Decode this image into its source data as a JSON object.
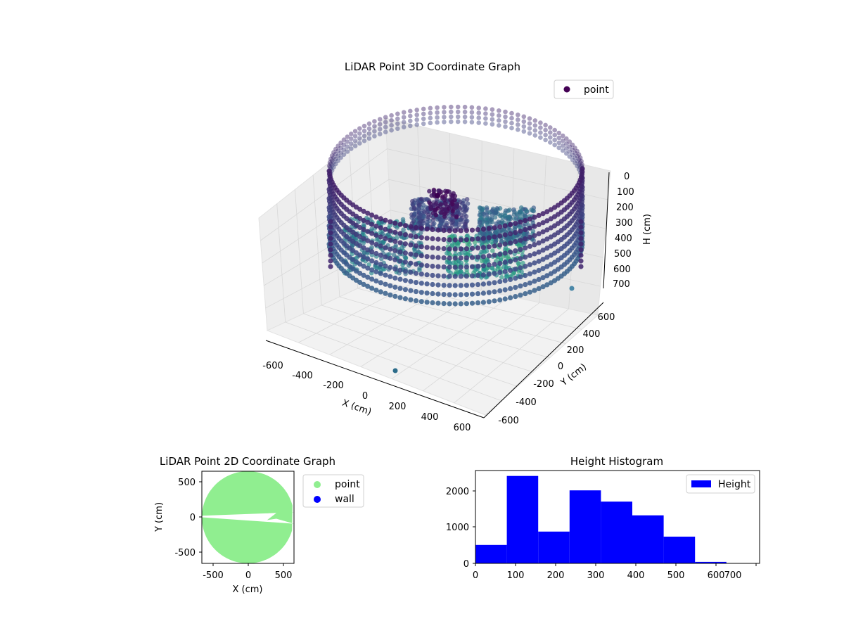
{
  "chart_data": [
    {
      "type": "scatter",
      "title": "LiDAR Point 3D Coordinate Graph",
      "xlabel": "X (cm)",
      "ylabel": "Y (cm)",
      "zlabel": "H (cm)",
      "xticks": [
        "-600",
        "-400",
        "-200",
        "0",
        "200",
        "400",
        "600"
      ],
      "yticks": [
        "-600",
        "-400",
        "-200",
        "0",
        "200",
        "400",
        "600"
      ],
      "zticks": [
        "0",
        "100",
        "200",
        "300",
        "400",
        "500",
        "600",
        "700"
      ],
      "xlim": [
        -650,
        650
      ],
      "ylim": [
        -650,
        650
      ],
      "zlim": [
        0,
        760
      ],
      "z_inverted": true,
      "grid": true,
      "legend": {
        "position": "upper-right",
        "entries": [
          "point"
        ]
      },
      "colormap": [
        "#440154",
        "#3b528b",
        "#21918c",
        "#5ec962"
      ],
      "series": [
        {
          "name": "point",
          "description_points": [
            {
              "x": 0,
              "y": 0,
              "h": 350
            },
            {
              "x": 550,
              "y": 0,
              "h": 300
            }
          ]
        }
      ]
    },
    {
      "type": "scatter",
      "title": "LiDAR Point 2D Coordinate Graph",
      "xlabel": "X (cm)",
      "ylabel": "Y (cm)",
      "xticks": [
        "-500",
        "0",
        "500"
      ],
      "yticks": [
        "-500",
        "0",
        "500"
      ],
      "xlim": [
        -650,
        650
      ],
      "ylim": [
        -650,
        650
      ],
      "legend": {
        "position": "outside-right",
        "entries": [
          "point",
          "wall"
        ]
      },
      "series": [
        {
          "name": "point",
          "color": "#90ee90",
          "shape": "disc",
          "radius": 650,
          "center": [
            0,
            0
          ]
        },
        {
          "name": "wall",
          "color": "#0000ff"
        }
      ]
    },
    {
      "type": "bar",
      "title": "Height Histogram",
      "xticks": [
        "0",
        "100",
        "200",
        "300",
        "400",
        "500",
        "600",
        "700"
      ],
      "yticks": [
        "0",
        "1000",
        "2000"
      ],
      "xlim": [
        0,
        770
      ],
      "ylim": [
        0,
        2570
      ],
      "legend": {
        "position": "upper-right",
        "entries": [
          "Height"
        ]
      },
      "bin_edges": [
        0,
        85,
        170,
        255,
        340,
        425,
        510,
        595,
        680
      ],
      "series": [
        {
          "name": "Height",
          "color": "#0000ff",
          "values": [
            510,
            2420,
            880,
            2020,
            1710,
            1330,
            740,
            40
          ]
        }
      ]
    }
  ]
}
